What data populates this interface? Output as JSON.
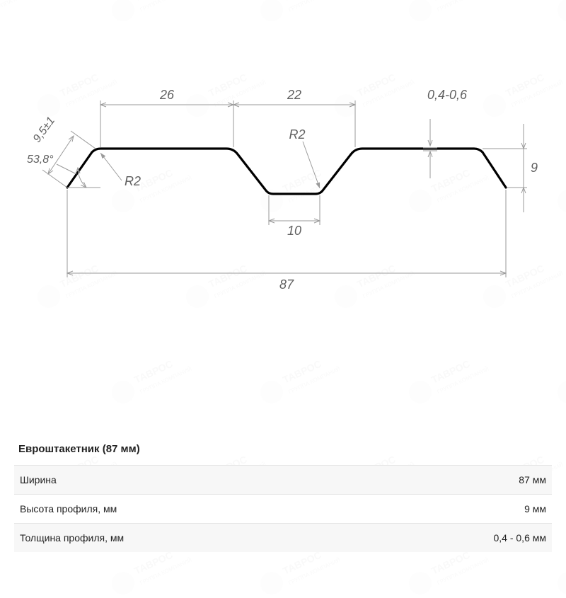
{
  "diagram": {
    "type": "technical-profile",
    "background_color": "#ffffff",
    "profile_stroke": "#000000",
    "profile_stroke_width": 3.2,
    "dim_stroke": "#9a9a9a",
    "dim_stroke_width": 1,
    "grid_color": "#e0e0e0",
    "title_fontsize": 15,
    "label_fontsize": 18,
    "label_fontsize_small": 16,
    "label_color": "#606060",
    "dims": {
      "top_left_flat": "26",
      "top_right_flat": "22",
      "thickness": "0,4-0,6",
      "flange": "9,5±1",
      "angle": "53,8°",
      "radius": "R2",
      "radius_mid": "R2",
      "valley_bottom": "10",
      "overall_width": "87",
      "height": "9"
    }
  },
  "table": {
    "title": "Евроштакетник (87 мм)",
    "rows": [
      {
        "label": "Ширина",
        "value": "87 мм"
      },
      {
        "label": "Высота профиля, мм",
        "value": "9 мм"
      },
      {
        "label": "Толщина профиля, мм",
        "value": "0,4 - 0,6 мм"
      }
    ],
    "row_bg_odd": "#f7f7f7",
    "row_bg_even": "#ffffff",
    "border_color": "#e5e5e5",
    "text_color": "#222222"
  },
  "watermark": {
    "text": "ТАВРОС",
    "subtext": "ГРУППА КОМПАНИЙ",
    "color": "#888888",
    "opacity": 0.05
  }
}
